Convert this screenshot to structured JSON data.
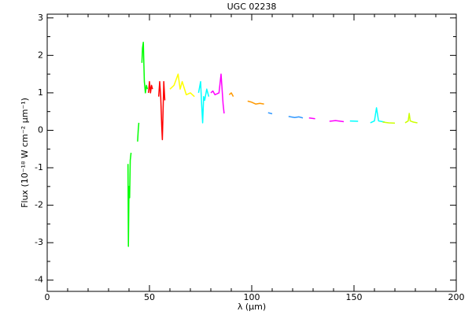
{
  "chart_data": {
    "type": "line",
    "title": "UGC 02238",
    "xlabel": "λ (μm)",
    "ylabel": "Flux (10⁻¹⁸ W cm⁻² μm⁻¹)",
    "xlim": [
      0,
      200
    ],
    "xticks": [
      0,
      50,
      100,
      150,
      200
    ],
    "xminorticks": [
      10,
      20,
      30,
      40,
      60,
      70,
      80,
      90,
      110,
      120,
      130,
      140,
      160,
      170,
      180,
      190
    ],
    "ylim": [
      -4.3,
      3.1
    ],
    "yticks": [
      -4,
      -3,
      -2,
      -1,
      0,
      1,
      2,
      3
    ],
    "yminorticks": [
      -3.5,
      -2.5,
      -1.5,
      -0.5,
      0.5,
      1.5,
      2.5
    ],
    "series": [
      {
        "color": "#00ff00",
        "x": [
          39.5,
          39.7,
          40,
          40.3,
          40.6,
          41,
          null,
          44.2,
          44.5,
          44.8,
          null,
          46.3,
          46.6,
          47,
          47.2,
          47.5,
          48,
          48.5,
          49
        ],
        "values": [
          -0.9,
          -3.1,
          -1.5,
          -1.8,
          -0.8,
          -0.6,
          null,
          -0.3,
          0,
          0.2,
          null,
          1.8,
          2.2,
          2.35,
          1.9,
          1.3,
          1.0,
          1.2,
          1.1
        ]
      },
      {
        "color": "#ff0000",
        "x": [
          49.5,
          50,
          50.5,
          51,
          51.5,
          null,
          54.5,
          55,
          55.5,
          56,
          56.3,
          56.6,
          57,
          57.5
        ],
        "values": [
          1.0,
          1.3,
          1.0,
          1.2,
          1.1,
          null,
          0.9,
          1.3,
          0.9,
          0.1,
          -0.25,
          0.4,
          1.3,
          0.8
        ]
      },
      {
        "color": "#ffff00",
        "x": [
          60,
          62,
          64,
          65,
          66,
          68,
          70,
          72
        ],
        "values": [
          1.1,
          1.2,
          1.5,
          1.1,
          1.3,
          0.95,
          1.0,
          0.9
        ]
      },
      {
        "color": "#00ffff",
        "x": [
          74,
          75,
          75.5,
          76,
          76.5,
          77,
          78,
          79
        ],
        "values": [
          1.0,
          1.3,
          0.7,
          0.2,
          0.9,
          0.8,
          1.1,
          0.9
        ]
      },
      {
        "color": "#ff00ff",
        "x": [
          80,
          81,
          82,
          84,
          85,
          85.5,
          86,
          86.5
        ],
        "values": [
          1.0,
          1.05,
          0.95,
          1.0,
          1.5,
          1.1,
          0.7,
          0.45
        ]
      },
      {
        "color": "#ff9900",
        "x": [
          89,
          90,
          91,
          null,
          98,
          100,
          102,
          104,
          106
        ],
        "values": [
          0.95,
          1.0,
          0.9,
          null,
          0.78,
          0.75,
          0.7,
          0.72,
          0.7
        ]
      },
      {
        "color": "#3399ff",
        "x": [
          108,
          110,
          null,
          118,
          121,
          123,
          125
        ],
        "values": [
          0.47,
          0.44,
          null,
          0.37,
          0.34,
          0.36,
          0.33
        ]
      },
      {
        "color": "#ff00ff",
        "x": [
          128,
          131,
          null,
          138,
          141,
          145
        ],
        "values": [
          0.33,
          0.31,
          null,
          0.24,
          0.26,
          0.23
        ]
      },
      {
        "color": "#00ffff",
        "x": [
          148,
          152,
          null,
          158,
          160,
          161,
          162,
          165
        ],
        "values": [
          0.25,
          0.24,
          null,
          0.2,
          0.25,
          0.6,
          0.25,
          0.22
        ]
      },
      {
        "color": "#ccff00",
        "x": [
          164,
          167,
          170,
          null,
          175,
          176.5,
          177,
          177.5,
          179,
          181
        ],
        "values": [
          0.22,
          0.2,
          0.19,
          null,
          0.2,
          0.25,
          0.45,
          0.25,
          0.22,
          0.2
        ]
      }
    ]
  }
}
